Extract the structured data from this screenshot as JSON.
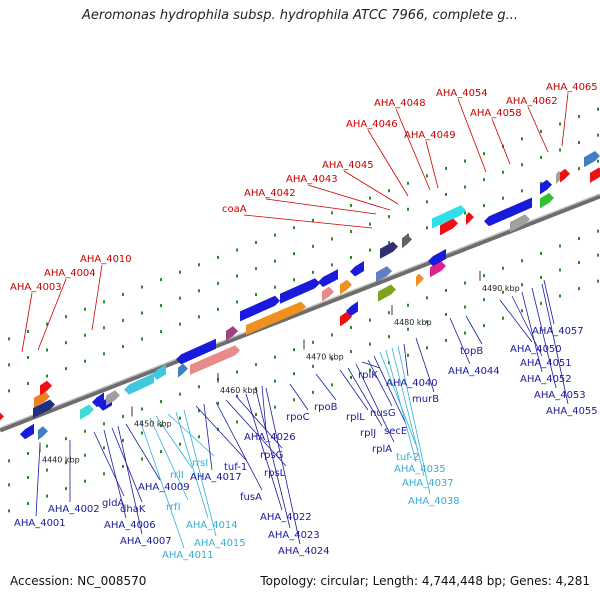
{
  "title": "Aeromonas hydrophila subsp. hydrophila ATCC 7966, complete g...",
  "footer": {
    "accession": "Accession: NC_008570",
    "topology": "Topology: circular; Length: 4,744,448 bp; Genes: 4,281"
  },
  "colors": {
    "forward_gene": "#1a1adc",
    "rrna": "#40c8e0",
    "ribosomal": "#e88a8a",
    "rpo": "#f09020",
    "red_gene": "#ee1111",
    "label_red": "#cc0000",
    "label_blue": "#1a1aa0",
    "label_cyan": "#30b0d8",
    "backbone": "#888888"
  },
  "ticks": [
    {
      "label": "4440 kbp"
    },
    {
      "label": "4450 kbp"
    },
    {
      "label": "4460 kbp"
    },
    {
      "label": "4470 kbp"
    },
    {
      "label": "4480 kbp"
    },
    {
      "label": "4490 kbp"
    }
  ],
  "labels_top": [
    {
      "text": "AHA_4003"
    },
    {
      "text": "AHA_4004"
    },
    {
      "text": "AHA_4010"
    },
    {
      "text": "coaA"
    },
    {
      "text": "AHA_4042"
    },
    {
      "text": "AHA_4043"
    },
    {
      "text": "AHA_4045"
    },
    {
      "text": "AHA_4046"
    },
    {
      "text": "AHA_4048"
    },
    {
      "text": "AHA_4049"
    },
    {
      "text": "AHA_4054"
    },
    {
      "text": "AHA_4058"
    },
    {
      "text": "AHA_4062"
    },
    {
      "text": "AHA_4065"
    }
  ],
  "labels_bottom": [
    {
      "text": "AHA_4001"
    },
    {
      "text": "AHA_4002"
    },
    {
      "text": "gldA"
    },
    {
      "text": "AHA_4006"
    },
    {
      "text": "dhaK"
    },
    {
      "text": "AHA_4007"
    },
    {
      "text": "AHA_4009"
    },
    {
      "text": "AHA_4011"
    },
    {
      "text": "rrfI"
    },
    {
      "text": "rrlI"
    },
    {
      "text": "rrsI"
    },
    {
      "text": "AHA_4014"
    },
    {
      "text": "AHA_4015"
    },
    {
      "text": "tuf-1"
    },
    {
      "text": "AHA_4017"
    },
    {
      "text": "fusA"
    },
    {
      "text": "rpsL"
    },
    {
      "text": "rpsG"
    },
    {
      "text": "AHA_4022"
    },
    {
      "text": "AHA_4023"
    },
    {
      "text": "AHA_4024"
    },
    {
      "text": "AHA_4026"
    },
    {
      "text": "rpoC"
    },
    {
      "text": "rpoB"
    },
    {
      "text": "rplL"
    },
    {
      "text": "rplJ"
    },
    {
      "text": "rplA"
    },
    {
      "text": "rplK"
    },
    {
      "text": "nusG"
    },
    {
      "text": "secE"
    },
    {
      "text": "tuf-2"
    },
    {
      "text": "AHA_4035"
    },
    {
      "text": "AHA_4037"
    },
    {
      "text": "AHA_4038"
    },
    {
      "text": "AHA_4040"
    },
    {
      "text": "murB"
    },
    {
      "text": "AHA_4044"
    },
    {
      "text": "topB"
    },
    {
      "text": "AHA_4050"
    },
    {
      "text": "AHA_4051"
    },
    {
      "text": "AHA_4052"
    },
    {
      "text": "AHA_4053"
    },
    {
      "text": "AHA_4055"
    },
    {
      "text": "AHA_4057"
    }
  ]
}
